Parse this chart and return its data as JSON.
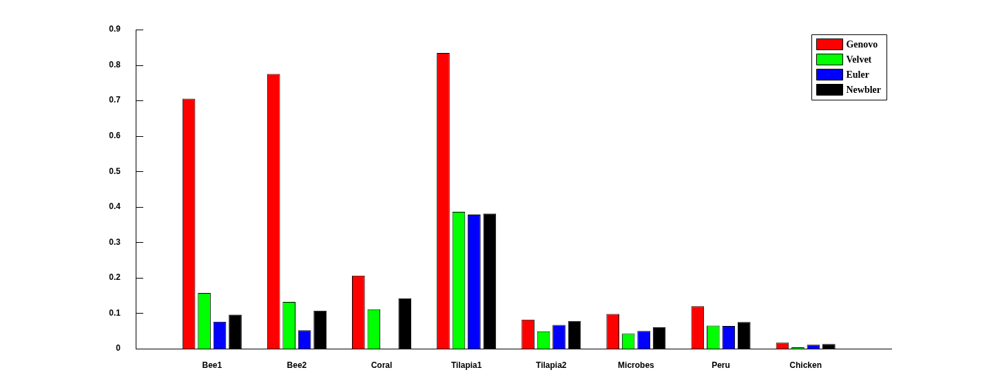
{
  "chart_data": {
    "type": "bar",
    "categories": [
      "Bee1",
      "Bee2",
      "Coral",
      "Tilapia1",
      "Tilapia2",
      "Microbes",
      "Peru",
      "Chicken"
    ],
    "series": [
      {
        "name": "Genovo",
        "color": "#ff0000",
        "values": [
          0.705,
          0.775,
          0.206,
          0.834,
          0.082,
          0.098,
          0.12,
          0.017
        ]
      },
      {
        "name": "Velvet",
        "color": "#00ff00",
        "values": [
          0.157,
          0.132,
          0.111,
          0.386,
          0.049,
          0.042,
          0.065,
          0.004
        ]
      },
      {
        "name": "Euler",
        "color": "#0000ff",
        "values": [
          0.076,
          0.052,
          null,
          0.378,
          0.067,
          0.05,
          0.064,
          0.011
        ]
      },
      {
        "name": "Newbler",
        "color": "#000000",
        "values": [
          0.096,
          0.107,
          0.142,
          0.381,
          0.078,
          0.06,
          0.075,
          0.013
        ]
      }
    ],
    "ylim": [
      0,
      0.9
    ],
    "yticks": [
      0,
      0.1,
      0.2,
      0.3,
      0.4,
      0.5,
      0.6,
      0.7,
      0.8,
      0.9
    ],
    "legend": "top right"
  }
}
